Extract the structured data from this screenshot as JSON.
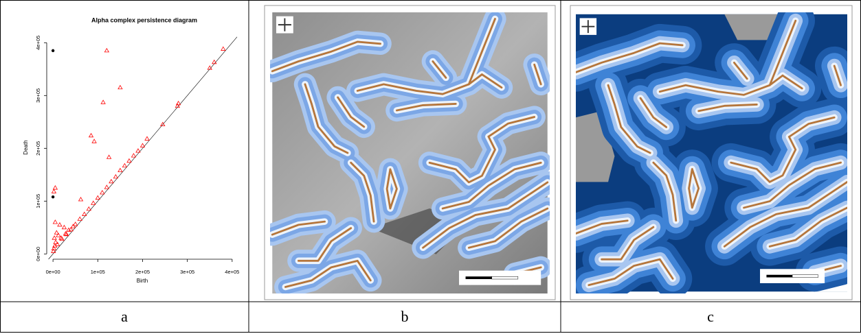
{
  "chart_data": {
    "type": "scatter",
    "title": "Alpha complex persistence diagram",
    "x_label": "Birth",
    "y_label": "Death",
    "xlim": [
      -14000,
      411000
    ],
    "ylim": [
      -10000,
      416000
    ],
    "xticks": [
      {
        "value": 0,
        "label": "0e+00"
      },
      {
        "value": 100000,
        "label": "1e+05"
      },
      {
        "value": 200000,
        "label": "2e+05"
      },
      {
        "value": 300000,
        "label": "3e+05"
      },
      {
        "value": 400000,
        "label": "4e+05"
      }
    ],
    "yticks": [
      {
        "value": 0,
        "label": "0e+00"
      },
      {
        "value": 100000,
        "label": "1e+05"
      },
      {
        "value": 200000,
        "label": "2e+05"
      },
      {
        "value": 300000,
        "label": "3e+05"
      },
      {
        "value": 400000,
        "label": "4e+05"
      }
    ],
    "diagonal": true,
    "series": [
      {
        "color": "#000000",
        "marker": "dot",
        "x": [
          0,
          0
        ],
        "values": [
          385000,
          108000
        ]
      },
      {
        "color": "#ff0000",
        "marker": "triangle",
        "x": [
          120000,
          150000,
          112000,
          85000,
          92000,
          125000,
          5000,
          2000,
          62000,
          280000,
          245000,
          360000,
          380000,
          350000,
          278000,
          210000,
          200000,
          190000,
          180000,
          170000,
          160000,
          150000,
          140000,
          130000,
          120000,
          110000,
          100000,
          90000,
          80000,
          70000,
          60000,
          50000,
          40000,
          30000,
          20000,
          10000,
          5000,
          15000,
          25000,
          8000,
          3000,
          12000,
          35000,
          45000,
          2000,
          6000,
          18000,
          28000,
          1000,
          4000
        ],
        "values": [
          385000,
          315000,
          287000,
          224000,
          213000,
          183000,
          125000,
          118000,
          103000,
          285000,
          245000,
          363000,
          388000,
          352000,
          280000,
          218000,
          205000,
          195000,
          186000,
          176000,
          167000,
          158000,
          146000,
          137000,
          126000,
          116000,
          106000,
          96000,
          85000,
          75000,
          66000,
          56000,
          46000,
          37000,
          28000,
          18000,
          60000,
          55000,
          50000,
          40000,
          30000,
          35000,
          45000,
          52000,
          10000,
          22000,
          30000,
          38000,
          5000,
          15000
        ]
      }
    ]
  },
  "captions": [
    "a",
    "b",
    "c"
  ]
}
